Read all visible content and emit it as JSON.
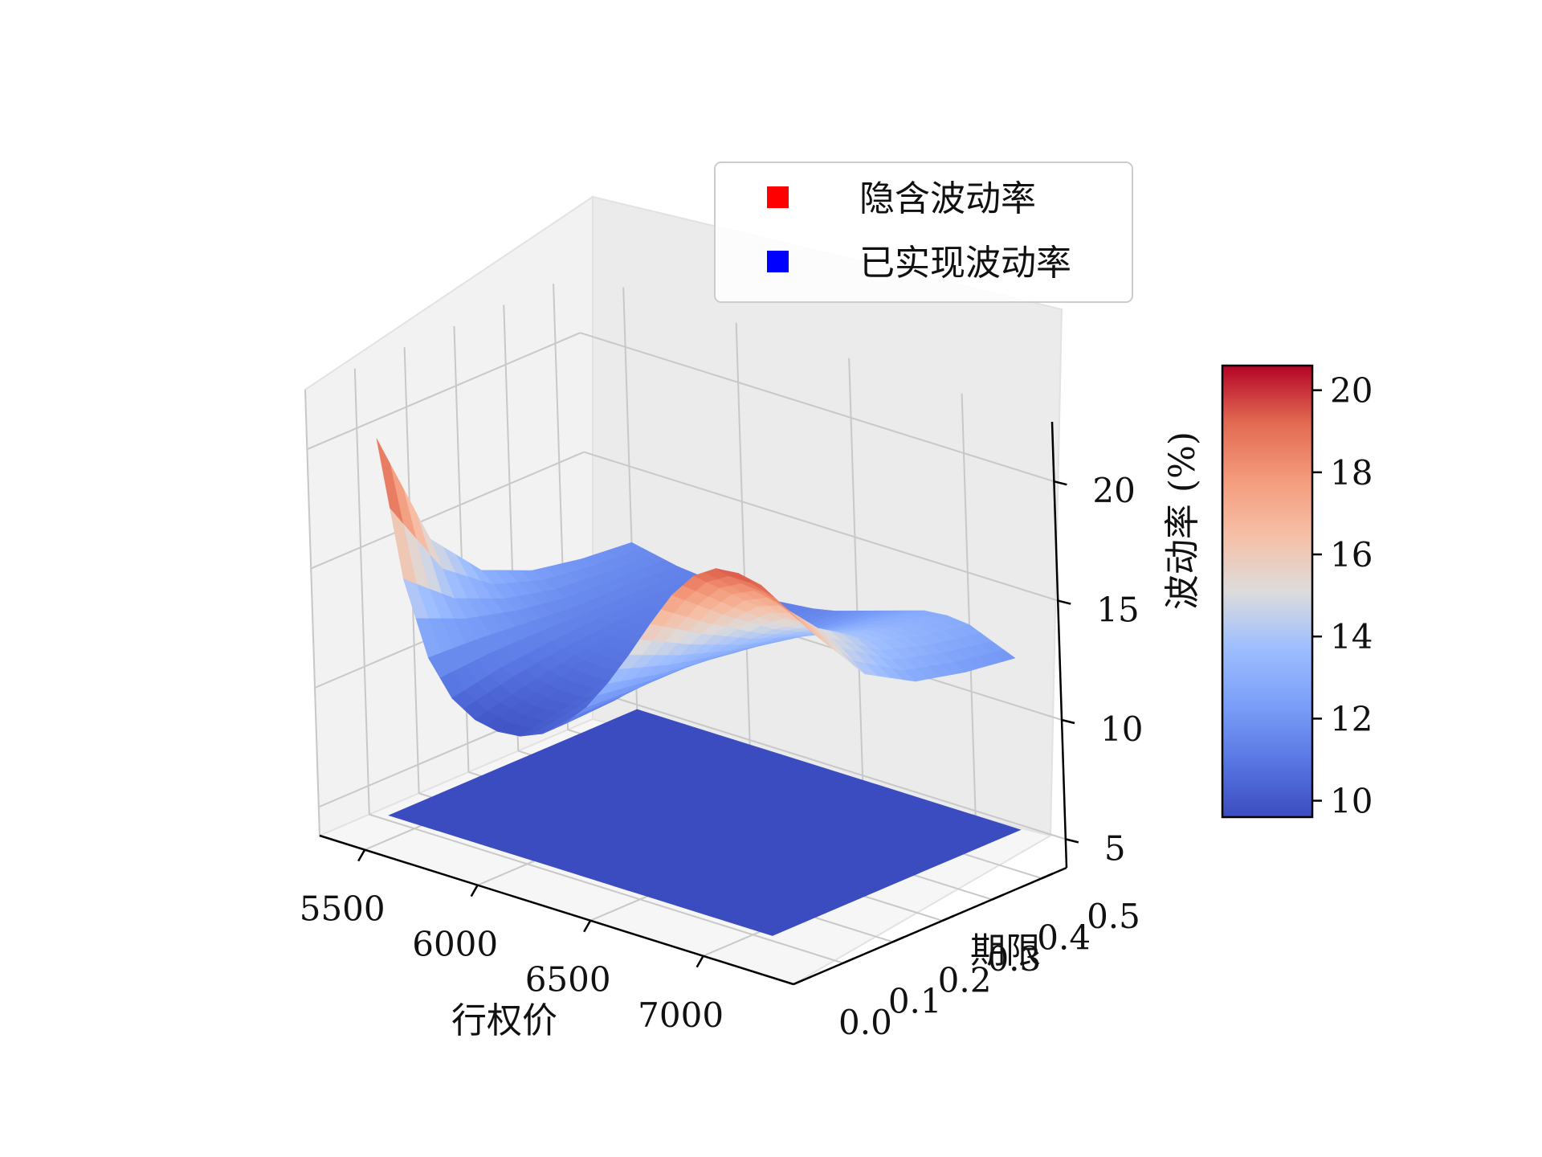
{
  "chart_data": {
    "type": "surface3d",
    "xlabel": "行权价",
    "ylabel": "期限",
    "zlabel": "波动率 (%)",
    "x_ticks": [
      "5500",
      "6000",
      "6500",
      "7000"
    ],
    "y_ticks": [
      "0.0",
      "0.1",
      "0.2",
      "0.3",
      "0.4",
      "0.5"
    ],
    "z_ticks": [
      "5",
      "10",
      "15",
      "20"
    ],
    "xlim": [
      5300,
      7400
    ],
    "ylim": [
      0,
      0.55
    ],
    "zlim": [
      3.8,
      22.5
    ],
    "grid": true,
    "colorbar": {
      "ticks": [
        "10",
        "12",
        "14",
        "16",
        "18",
        "20"
      ],
      "range": [
        9.6,
        20.6
      ],
      "colormap": "coolwarm"
    },
    "legend": {
      "placement": "top-right",
      "entries": [
        {
          "label": "隐含波动率",
          "color": "#ff0000"
        },
        {
          "label": "已实现波动率",
          "color": "#0000ff"
        }
      ]
    },
    "series": [
      {
        "name": "隐含波动率",
        "type": "surface",
        "strike": [
          5500,
          5600,
          5700,
          5800,
          5900,
          6000,
          6100,
          6200,
          6300,
          6400,
          6500,
          6600,
          6700,
          6800,
          6900,
          7000,
          7100,
          7200
        ],
        "maturity": [
          0.05,
          0.15,
          0.25,
          0.35,
          0.45,
          0.55
        ],
        "volatility": [
          [
            20.6,
            15.0,
            12.0,
            10.6,
            10.0,
            9.8,
            9.9,
            10.3,
            11.0,
            12.0,
            13.3,
            14.8,
            16.4,
            17.9,
            19.0,
            19.6,
            19.7,
            19.5
          ],
          [
            15.5,
            13.3,
            11.9,
            11.0,
            10.5,
            10.3,
            10.3,
            10.6,
            11.1,
            11.9,
            12.8,
            13.9,
            15.1,
            16.2,
            17.1,
            17.5,
            17.2,
            16.6
          ],
          [
            13.3,
            12.4,
            11.7,
            11.2,
            10.9,
            10.8,
            10.8,
            11.0,
            11.4,
            11.9,
            12.5,
            13.2,
            14.0,
            14.7,
            15.2,
            15.3,
            14.8,
            14.0
          ],
          [
            12.4,
            11.9,
            11.5,
            11.3,
            11.1,
            11.1,
            11.1,
            11.2,
            11.5,
            11.8,
            12.2,
            12.7,
            13.2,
            13.6,
            13.9,
            13.9,
            13.4,
            12.8
          ],
          [
            12.0,
            11.7,
            11.5,
            11.3,
            11.2,
            11.2,
            11.2,
            11.3,
            11.5,
            11.7,
            12.0,
            12.4,
            12.8,
            13.1,
            13.3,
            13.2,
            12.8,
            12.3
          ],
          [
            11.8,
            11.6,
            11.4,
            11.3,
            11.2,
            11.2,
            11.2,
            11.3,
            11.4,
            11.6,
            11.9,
            12.2,
            12.5,
            12.8,
            12.9,
            12.8,
            12.4,
            12.0
          ]
        ]
      },
      {
        "name": "已实现波动率",
        "type": "surface",
        "strike": [
          5500,
          7200
        ],
        "maturity": [
          0.05,
          0.55
        ],
        "volatility": [
          [
            4.8,
            4.8
          ],
          [
            4.8,
            4.8
          ]
        ]
      }
    ]
  }
}
